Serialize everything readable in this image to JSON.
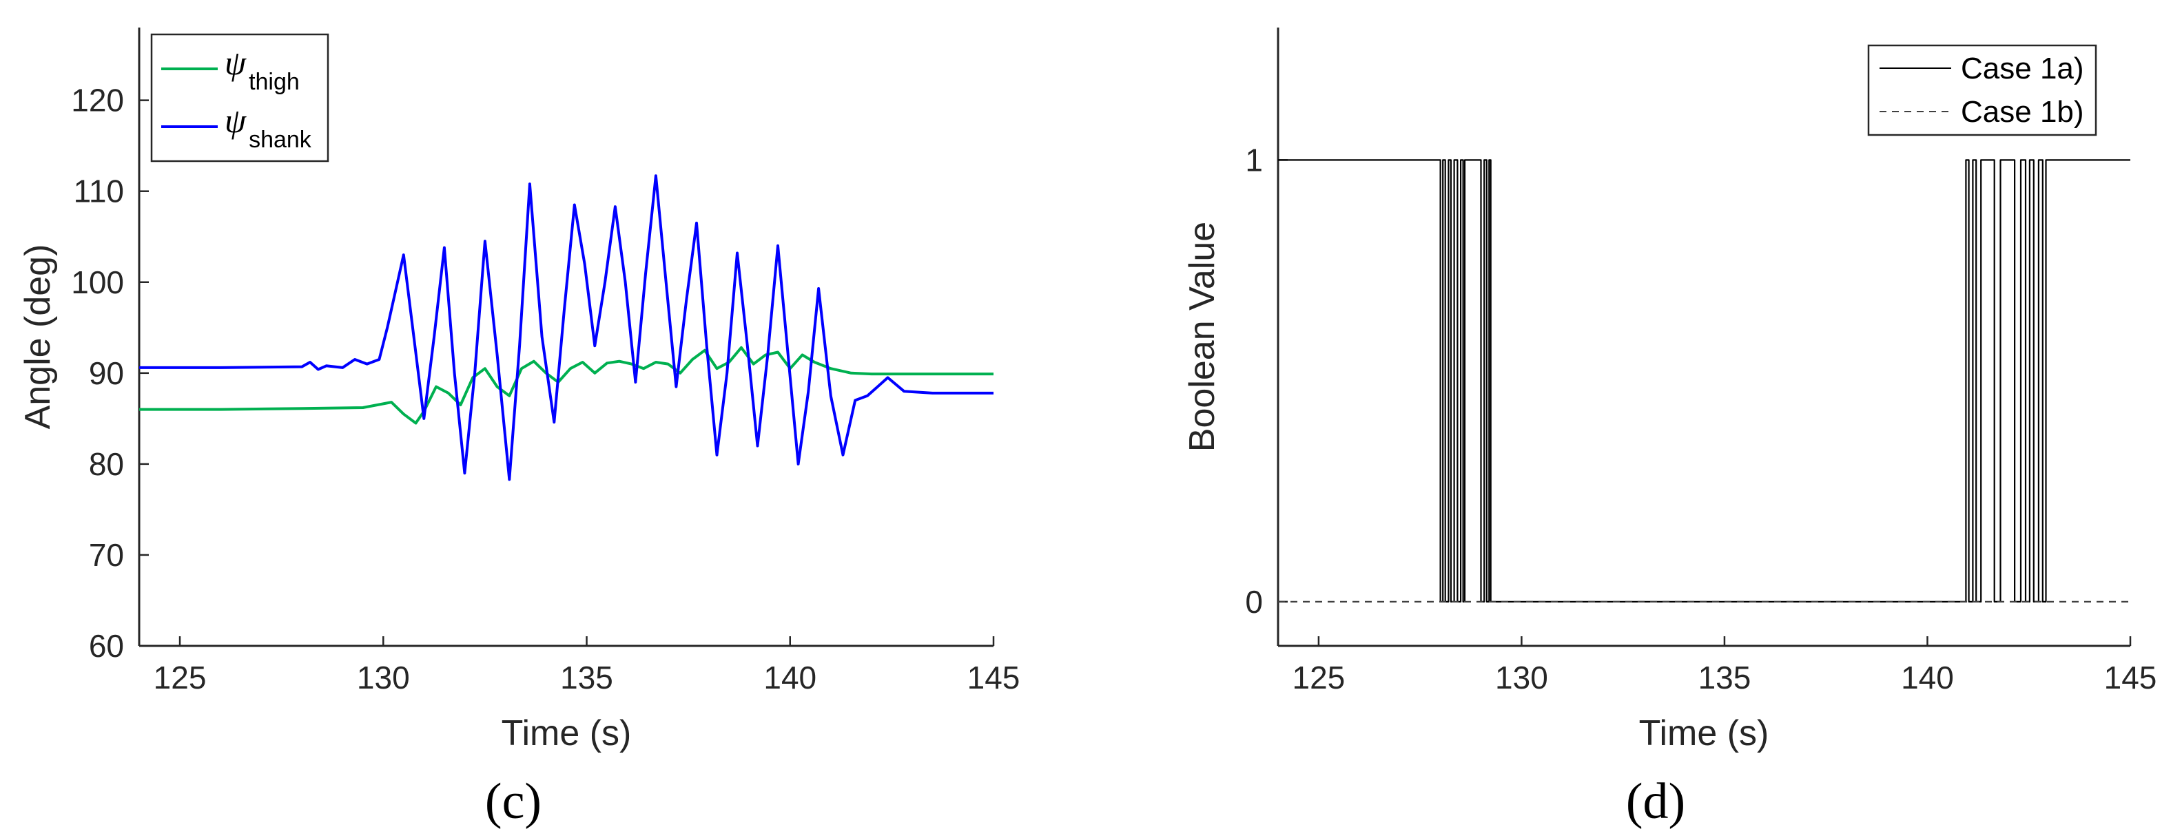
{
  "chart_data": [
    {
      "type": "line",
      "panel_label": "(c)",
      "xlabel": "Time (s)",
      "ylabel": "Angle (deg)",
      "xlim": [
        124,
        145
      ],
      "ylim": [
        60,
        128
      ],
      "xticks": [
        125,
        130,
        135,
        140,
        145
      ],
      "yticks": [
        60,
        70,
        80,
        90,
        100,
        110,
        120
      ],
      "grid": false,
      "legend_position": "top-left",
      "series": [
        {
          "name_symbol": "ψ",
          "name_sub": "thigh",
          "color": "#00b050",
          "x": [
            124,
            126,
            128,
            129.5,
            130.2,
            130.5,
            130.8,
            131.0,
            131.3,
            131.6,
            131.9,
            132.2,
            132.5,
            132.8,
            133.1,
            133.4,
            133.7,
            134.0,
            134.3,
            134.6,
            134.9,
            135.2,
            135.5,
            135.8,
            136.1,
            136.4,
            136.7,
            137.0,
            137.3,
            137.6,
            137.9,
            138.2,
            138.5,
            138.8,
            139.1,
            139.4,
            139.7,
            140.0,
            140.3,
            140.6,
            141.0,
            141.5,
            142.0,
            143.0,
            145
          ],
          "y": [
            86,
            86,
            86.1,
            86.2,
            86.8,
            85.5,
            84.5,
            85.8,
            88.5,
            87.8,
            86.5,
            89.5,
            90.5,
            88.5,
            87.5,
            90.5,
            91.3,
            90.0,
            89.0,
            90.5,
            91.2,
            90.0,
            91.1,
            91.3,
            91.0,
            90.5,
            91.2,
            91.0,
            90.0,
            91.5,
            92.5,
            90.5,
            91.2,
            92.8,
            91.0,
            92.0,
            92.3,
            90.5,
            92.0,
            91.2,
            90.5,
            90.0,
            89.9,
            89.9,
            89.9
          ]
        },
        {
          "name_symbol": "ψ",
          "name_sub": "shank",
          "color": "#0000ff",
          "x": [
            124,
            126,
            128.0,
            128.2,
            128.4,
            128.6,
            129.0,
            129.3,
            129.6,
            129.9,
            130.1,
            130.3,
            130.5,
            130.75,
            131.0,
            131.25,
            131.5,
            131.75,
            132.0,
            132.25,
            132.5,
            132.8,
            133.1,
            133.35,
            133.6,
            133.9,
            134.2,
            134.45,
            134.7,
            134.95,
            135.2,
            135.45,
            135.7,
            135.95,
            136.2,
            136.45,
            136.7,
            136.95,
            137.2,
            137.45,
            137.7,
            137.95,
            138.2,
            138.45,
            138.7,
            138.95,
            139.2,
            139.45,
            139.7,
            139.95,
            140.2,
            140.45,
            140.7,
            141.0,
            141.3,
            141.6,
            141.9,
            142.1,
            142.4,
            142.8,
            143.5,
            145
          ],
          "y": [
            90.6,
            90.6,
            90.7,
            91.2,
            90.4,
            90.8,
            90.6,
            91.5,
            91.0,
            91.5,
            95.0,
            99.0,
            103.0,
            94.0,
            85.0,
            94.0,
            103.8,
            90.0,
            79.0,
            90.0,
            104.5,
            92.0,
            78.3,
            93.0,
            110.8,
            94.0,
            84.6,
            97.0,
            108.5,
            102.0,
            93.0,
            100.0,
            108.3,
            100.0,
            89.0,
            101.0,
            111.7,
            100.0,
            88.5,
            98.0,
            106.5,
            93.0,
            81.0,
            90.0,
            103.2,
            93.0,
            82.0,
            92.0,
            104.0,
            92.0,
            80.0,
            88.0,
            99.3,
            87.5,
            81.0,
            87.0,
            87.5,
            88.3,
            89.5,
            88.0,
            87.8,
            87.8
          ]
        }
      ]
    },
    {
      "type": "line",
      "panel_label": "(d)",
      "xlabel": "Time (s)",
      "ylabel": "Boolean Value",
      "xlim": [
        124,
        145
      ],
      "ylim": [
        -0.1,
        1.3
      ],
      "xticks": [
        125,
        130,
        135,
        140,
        145
      ],
      "yticks": [
        0,
        1
      ],
      "grid": false,
      "legend_position": "top-right",
      "series": [
        {
          "name": "Case 1a)",
          "color": "#000000",
          "line_style": "solid",
          "x": [
            124,
            128.0,
            128.0,
            128.06,
            128.06,
            128.12,
            128.12,
            128.2,
            128.2,
            128.26,
            128.26,
            128.34,
            128.34,
            128.42,
            128.42,
            128.5,
            128.5,
            128.56,
            128.56,
            128.6,
            128.6,
            129.0,
            129.0,
            129.08,
            129.08,
            129.14,
            129.14,
            129.2,
            129.2,
            129.24,
            129.24,
            140.95,
            140.95,
            141.02,
            141.02,
            141.12,
            141.12,
            141.2,
            141.2,
            141.32,
            141.32,
            141.65,
            141.65,
            141.8,
            141.8,
            142.15,
            142.15,
            142.3,
            142.3,
            142.42,
            142.42,
            142.52,
            142.52,
            142.62,
            142.62,
            142.74,
            142.74,
            142.84,
            142.84,
            142.92,
            142.92,
            145
          ],
          "y": [
            1,
            1,
            0,
            0,
            1,
            1,
            0,
            0,
            1,
            1,
            0,
            0,
            1,
            1,
            0,
            0,
            1,
            1,
            0,
            0,
            1,
            1,
            0,
            0,
            1,
            1,
            0,
            0,
            1,
            1,
            0,
            0,
            1,
            1,
            0,
            0,
            1,
            1,
            0,
            0,
            1,
            1,
            0,
            0,
            1,
            1,
            0,
            0,
            1,
            1,
            0,
            0,
            1,
            1,
            0,
            0,
            1,
            1,
            0,
            0,
            1,
            1
          ]
        },
        {
          "name": "Case 1b)",
          "color": "#404040",
          "line_style": "dashed",
          "x": [
            124,
            145
          ],
          "y": [
            0,
            0
          ]
        }
      ]
    }
  ]
}
